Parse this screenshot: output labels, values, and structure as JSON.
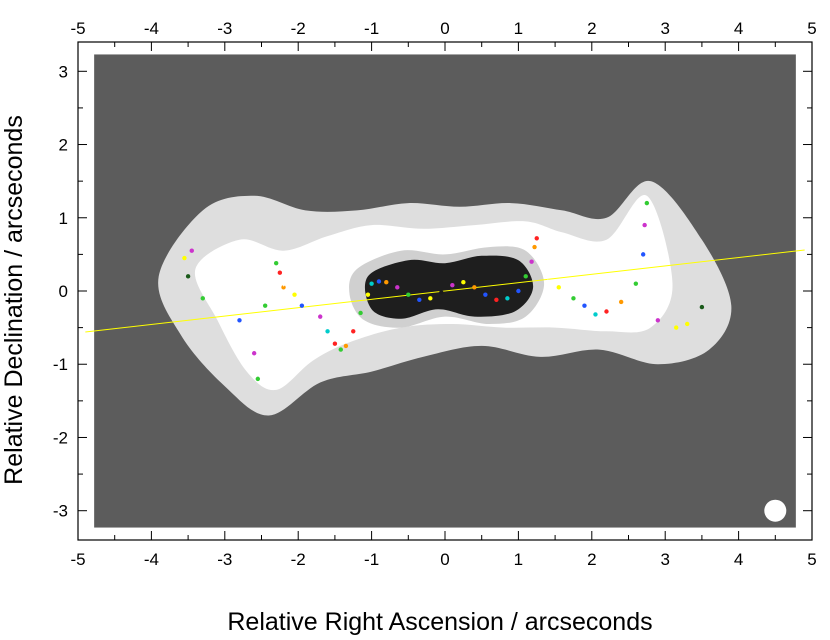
{
  "chart_data": {
    "type": "scatter",
    "title": "",
    "xlabel": "Relative Right Ascension / arcseconds",
    "ylabel": "Relative Declination / arcseconds",
    "xlim": [
      -5,
      5
    ],
    "ylim": [
      -3.4,
      3.4
    ],
    "xticks": [
      -5,
      -4,
      -3,
      -2,
      -1,
      0,
      1,
      2,
      3,
      4,
      5
    ],
    "yticks": [
      -3,
      -2,
      -1,
      0,
      1,
      2,
      3
    ],
    "x_tick_labels_top": [
      "-5",
      "-4",
      "-3",
      "-2",
      "-1",
      "0",
      "1",
      "2",
      "3",
      "4",
      "5"
    ],
    "x_tick_labels_bottom": [
      "-5",
      "-4",
      "-3",
      "-2",
      "-1",
      "0",
      "1",
      "2",
      "3",
      "4",
      "5"
    ],
    "y_tick_labels": [
      "-3",
      "-2",
      "-1",
      "0",
      "1",
      "2",
      "3"
    ],
    "background_color": "#5c5c5c",
    "grid": false,
    "jet_axis_line": {
      "color": "#ffff00",
      "x": [
        -4.9,
        4.9
      ],
      "y": [
        -0.56,
        0.56
      ]
    },
    "cross_markers": {
      "color": "#ffffff",
      "x": [
        -2.15,
        -1.85,
        1.45,
        1.68
      ],
      "y": [
        0.12,
        -0.12,
        0.1,
        -0.1
      ]
    },
    "beam": {
      "color": "#ffffff",
      "x": 4.5,
      "y": -3.0
    },
    "intensity_contours": [
      {
        "level": "outer",
        "color": "#dedede",
        "x": [
          -3.9,
          -3.3,
          -2.6,
          -1.9,
          -1.2,
          -0.5,
          0.2,
          0.9,
          1.6,
          2.2,
          2.8,
          3.5,
          3.9,
          3.6,
          2.9,
          2.1,
          1.3,
          0.5,
          -0.3,
          -1.0,
          -1.7,
          -2.4,
          -3.0,
          -3.6
        ],
        "y": [
          0.2,
          1.1,
          1.3,
          1.1,
          1.1,
          1.2,
          1.15,
          1.2,
          1.1,
          1.0,
          1.5,
          0.7,
          -0.2,
          -0.8,
          -1.0,
          -0.8,
          -0.9,
          -0.75,
          -0.9,
          -1.1,
          -1.25,
          -1.7,
          -1.3,
          -0.6
        ]
      },
      {
        "level": "mid",
        "color": "#ffffff",
        "x": [
          -3.4,
          -2.8,
          -2.2,
          -1.6,
          -1.0,
          -0.3,
          0.4,
          1.1,
          1.6,
          2.2,
          2.75,
          3.1,
          2.8,
          2.2,
          1.5,
          0.8,
          0.1,
          -0.6,
          -1.3,
          -1.8,
          -2.3,
          -2.7,
          -3.1
        ],
        "y": [
          0.3,
          0.7,
          0.55,
          0.75,
          0.9,
          0.85,
          0.9,
          0.95,
          0.8,
          0.7,
          1.3,
          0.1,
          -0.5,
          -0.55,
          -0.5,
          -0.5,
          -0.45,
          -0.5,
          -0.7,
          -0.95,
          -1.35,
          -1.1,
          -0.4
        ]
      },
      {
        "level": "inner",
        "color": "#d0d0d0",
        "x": [
          -1.2,
          -0.6,
          0.0,
          0.6,
          1.1,
          1.35,
          1.1,
          0.6,
          0.0,
          -0.6,
          -1.1,
          -1.3
        ],
        "y": [
          0.3,
          0.55,
          0.5,
          0.6,
          0.55,
          0.1,
          -0.35,
          -0.45,
          -0.35,
          -0.5,
          -0.4,
          -0.05
        ]
      },
      {
        "level": "core",
        "color": "#1e1e1e",
        "x": [
          -1.05,
          -0.5,
          0.0,
          0.5,
          1.0,
          1.2,
          0.95,
          0.4,
          -0.1,
          -0.6,
          -1.0
        ],
        "y": [
          0.2,
          0.42,
          0.38,
          0.48,
          0.42,
          0.05,
          -0.28,
          -0.35,
          -0.25,
          -0.38,
          -0.25
        ]
      }
    ],
    "series": [
      {
        "x": [
          -2.3,
          -2.25,
          -2.2,
          -2.05,
          -1.95,
          -1.7,
          -1.6,
          -1.5,
          -1.42,
          -1.35,
          -1.25,
          -1.15,
          -1.05
        ],
        "y": [
          0.38,
          0.25,
          0.05,
          -0.05,
          -0.2,
          -0.35,
          -0.55,
          -0.72,
          -0.8,
          -0.75,
          -0.55,
          -0.3,
          -0.05
        ],
        "colors": [
          "#33cc33",
          "#ff2222",
          "#ff9900",
          "#ffff00",
          "#2255ff",
          "#cc33cc",
          "#00cccc",
          "#ff2222",
          "#33cc33",
          "#ff9900",
          "#ff2222",
          "#33cc33",
          "#ffff00"
        ]
      },
      {
        "x": [
          -1.0,
          -0.9,
          -0.8,
          -0.65,
          -0.5,
          -0.35,
          -0.2,
          -0.05,
          0.1,
          0.25,
          0.4,
          0.55,
          0.7,
          0.85,
          1.0,
          1.1,
          1.18,
          1.22,
          1.25
        ],
        "y": [
          0.1,
          0.13,
          0.12,
          0.05,
          -0.05,
          -0.12,
          -0.1,
          -0.02,
          0.08,
          0.12,
          0.05,
          -0.05,
          -0.12,
          -0.1,
          0.0,
          0.2,
          0.4,
          0.6,
          0.72
        ],
        "colors": [
          "#00cccc",
          "#2255ff",
          "#ff9900",
          "#cc33cc",
          "#33cc33",
          "#2255ff",
          "#ffff00",
          "#1a1a1a",
          "#cc33cc",
          "#ffff00",
          "#ff9900",
          "#2255ff",
          "#ff2222",
          "#00cccc",
          "#2255ff",
          "#33cc33",
          "#cc33cc",
          "#ff9900",
          "#ff2222"
        ]
      },
      {
        "x": [
          1.55,
          1.75,
          1.9,
          2.05,
          2.2,
          2.4,
          2.6
        ],
        "y": [
          0.05,
          -0.1,
          -0.2,
          -0.32,
          -0.28,
          -0.15,
          0.1
        ],
        "colors": [
          "#ffff00",
          "#33cc33",
          "#2255ff",
          "#00cccc",
          "#ff2222",
          "#ff9900",
          "#33cc33"
        ]
      },
      {
        "x": [
          -3.55,
          -3.5,
          -3.45,
          -3.3,
          -2.8,
          -2.6,
          -2.55,
          -2.45
        ],
        "y": [
          0.45,
          0.2,
          0.55,
          -0.1,
          -0.4,
          -0.85,
          -1.2,
          -0.2
        ],
        "colors": [
          "#ffff00",
          "#1a5a1a",
          "#cc33cc",
          "#33cc33",
          "#2255ff",
          "#cc33cc",
          "#33cc33",
          "#33cc33"
        ]
      },
      {
        "x": [
          2.7,
          2.72,
          2.75,
          2.9,
          3.15,
          3.3,
          3.5
        ],
        "y": [
          0.5,
          0.9,
          1.2,
          -0.4,
          -0.5,
          -0.45,
          -0.22
        ],
        "colors": [
          "#2255ff",
          "#cc33cc",
          "#33cc33",
          "#cc33cc",
          "#ffff00",
          "#ffff00",
          "#1a5a1a"
        ]
      }
    ]
  }
}
